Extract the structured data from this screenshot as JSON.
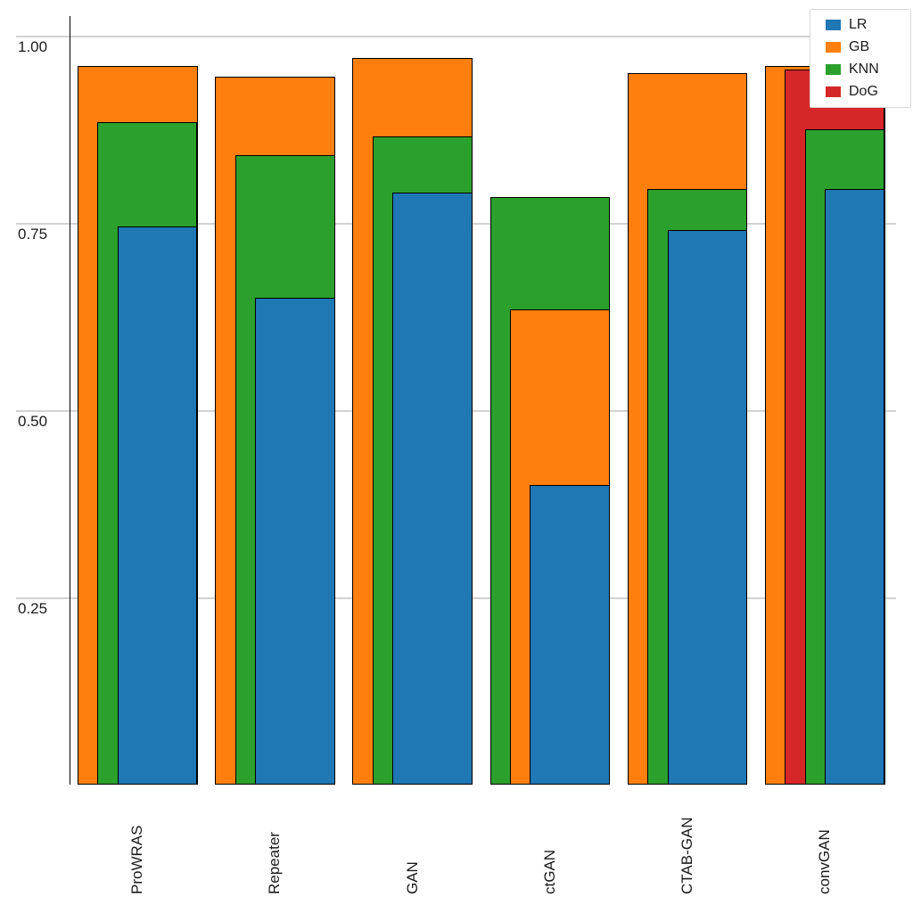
{
  "figure": {
    "background_color": "#ffffff",
    "bar_outline_color": "#000000",
    "gridline_color": "#d2d2d2",
    "axis_color": "#000000"
  },
  "chart_data": {
    "type": "bar",
    "variant": "overlapped-grouped-bars (per category, taller series drawn wider behind shorter narrower ones, right-aligned)",
    "title": "",
    "xlabel": "",
    "ylabel": "",
    "categories": [
      "ProWRAS",
      "Repeater",
      "GAN",
      "ctGAN",
      "CTAB-GAN",
      "convGAN"
    ],
    "series": [
      {
        "name": "LR",
        "color": "#1f77b4",
        "values": [
          0.745,
          0.65,
          0.79,
          0.4,
          0.74,
          0.795
        ]
      },
      {
        "name": "GB",
        "color": "#ff7f0e",
        "values": [
          0.96,
          0.945,
          0.97,
          0.635,
          0.95,
          0.96
        ]
      },
      {
        "name": "KNN",
        "color": "#2ca02c",
        "values": [
          0.885,
          0.84,
          0.865,
          0.785,
          0.795,
          0.875
        ]
      },
      {
        "name": "DoG",
        "color": "#d62728",
        "values": [
          null,
          null,
          null,
          null,
          null,
          0.955
        ]
      }
    ],
    "ytick_labels": [
      "0.25",
      "0.50",
      "0.75",
      "1.00"
    ],
    "ytick_values": [
      0.25,
      0.5,
      0.75,
      1.0
    ],
    "ylim": [
      0,
      1.05
    ],
    "grid": "horizontal",
    "legend": {
      "position": "top-right",
      "entries": [
        "LR",
        "GB",
        "KNN",
        "DoG"
      ]
    },
    "x_tick_rotation_deg": 90
  }
}
